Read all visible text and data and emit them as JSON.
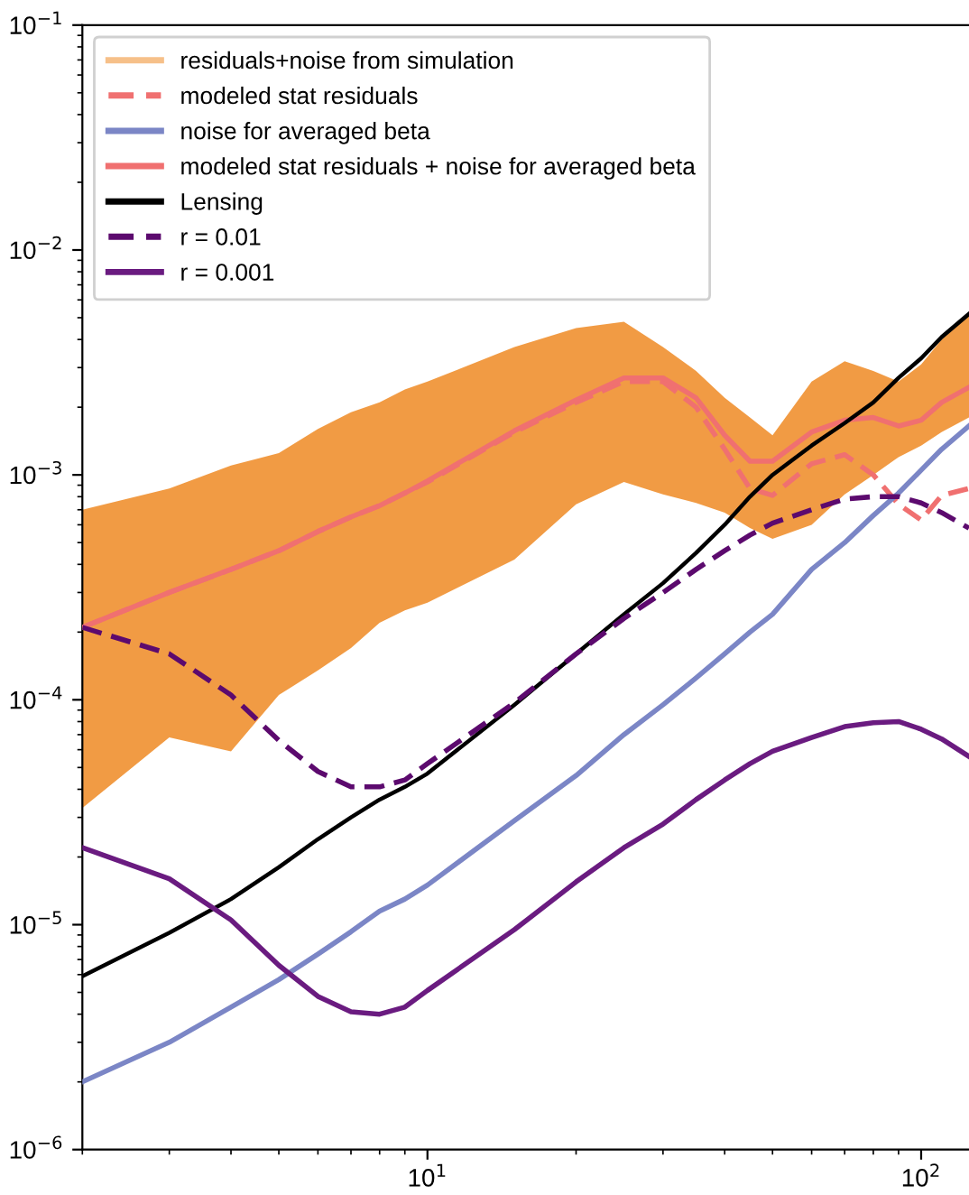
{
  "chart_data": {
    "type": "line",
    "x": [
      2,
      3,
      4,
      5,
      6,
      7,
      8,
      9,
      10,
      15,
      20,
      25,
      30,
      35,
      40,
      45,
      50,
      60,
      70,
      80,
      90,
      100,
      110,
      125
    ],
    "series": [
      {
        "name": "residuals+noise from simulation",
        "color": "#f0963a",
        "values": [
          null,
          null,
          null,
          null,
          null,
          null,
          null,
          null,
          null,
          null,
          null,
          null,
          null,
          null,
          null,
          null,
          null,
          null,
          null,
          null,
          null,
          null,
          null,
          null
        ],
        "lower": [
          3.3e-05,
          6.8e-05,
          5.9e-05,
          0.000105,
          0.000135,
          0.00017,
          0.00022,
          0.00025,
          0.00027,
          0.00042,
          0.00074,
          0.00093,
          0.00082,
          0.00075,
          0.00068,
          0.00058,
          0.00052,
          0.0006,
          0.00082,
          0.001,
          0.0012,
          0.00135,
          0.00155,
          0.0018
        ],
        "upper": [
          0.0007,
          0.00087,
          0.0011,
          0.00125,
          0.0016,
          0.0019,
          0.0021,
          0.0024,
          0.0026,
          0.0037,
          0.0045,
          0.0048,
          0.0037,
          0.0029,
          0.0022,
          0.0018,
          0.0015,
          0.0026,
          0.0032,
          0.0029,
          0.0026,
          0.0031,
          0.004,
          0.0051
        ]
      },
      {
        "name": "modeled stat residuals",
        "color": "#f07070",
        "line_style": "dashed",
        "values": [
          0.00021,
          0.0003,
          0.00038,
          0.00046,
          0.00056,
          0.00065,
          0.00073,
          0.00083,
          0.00093,
          0.00155,
          0.0021,
          0.0026,
          0.0026,
          0.002,
          0.0013,
          0.00087,
          0.00081,
          0.00112,
          0.00123,
          0.001,
          0.00074,
          0.00063,
          0.00081,
          0.00087
        ]
      },
      {
        "name": "noise for averaged beta",
        "color": "#7b86c6",
        "values": [
          2e-06,
          3e-06,
          4.3e-06,
          5.7e-06,
          7.4e-06,
          9.3e-06,
          1.15e-05,
          1.3e-05,
          1.5e-05,
          2.9e-05,
          4.6e-05,
          7e-05,
          9.5e-05,
          0.000125,
          0.00016,
          0.0002,
          0.00024,
          0.00038,
          0.0005,
          0.00066,
          0.00083,
          0.00105,
          0.0013,
          0.00165
        ]
      },
      {
        "name": "modeled stat residuals + noise for averaged beta",
        "color": "#f07070",
        "values": [
          0.00021,
          0.0003,
          0.00038,
          0.00046,
          0.00056,
          0.00065,
          0.00073,
          0.00083,
          0.00094,
          0.00157,
          0.00215,
          0.0027,
          0.0027,
          0.0022,
          0.0015,
          0.00115,
          0.00115,
          0.00155,
          0.00175,
          0.0018,
          0.00165,
          0.00175,
          0.0021,
          0.00245
        ]
      },
      {
        "name": "Lensing",
        "color": "#000000",
        "values": [
          5.9e-06,
          9.2e-06,
          1.3e-05,
          1.8e-05,
          2.4e-05,
          3e-05,
          3.6e-05,
          4.1e-05,
          4.7e-05,
          9.5e-05,
          0.00016,
          0.00024,
          0.00033,
          0.00045,
          0.0006,
          0.0008,
          0.001,
          0.00135,
          0.0017,
          0.0021,
          0.0027,
          0.0033,
          0.0041,
          0.0052
        ]
      },
      {
        "name": "r = 0.01",
        "color": "#5c0a6e",
        "line_style": "dashed",
        "values": [
          0.00021,
          0.00016,
          0.000105,
          6.6e-05,
          4.8e-05,
          4.1e-05,
          4.1e-05,
          4.4e-05,
          5.2e-05,
          9.7e-05,
          0.00016,
          0.00023,
          0.0003,
          0.00038,
          0.00046,
          0.00054,
          0.00061,
          0.0007,
          0.00078,
          0.0008,
          0.0008,
          0.00075,
          0.00068,
          0.00058
        ]
      },
      {
        "name": "r = 0.001",
        "color": "#6a1b80",
        "values": [
          2.2e-05,
          1.6e-05,
          1.05e-05,
          6.6e-06,
          4.8e-06,
          4.1e-06,
          4e-06,
          4.3e-06,
          5.1e-06,
          9.5e-06,
          1.55e-05,
          2.2e-05,
          2.8e-05,
          3.6e-05,
          4.4e-05,
          5.2e-05,
          5.9e-05,
          6.8e-05,
          7.6e-05,
          7.9e-05,
          8e-05,
          7.4e-05,
          6.7e-05,
          5.6e-05
        ]
      }
    ],
    "log": "xy",
    "xlim": [
      2,
      125
    ],
    "ylim": [
      1e-06,
      0.1
    ],
    "xticks": [
      {
        "value": 10,
        "label": "10$^{1}$"
      },
      {
        "value": 100,
        "label": "10$^{2}$"
      }
    ],
    "yticks": [
      {
        "value": 1e-06,
        "label": "10$^{−6}$"
      },
      {
        "value": 1e-05,
        "label": "10$^{−5}$"
      },
      {
        "value": 0.0001,
        "label": "10$^{−4}$"
      },
      {
        "value": 0.001,
        "label": "10$^{−3}$"
      },
      {
        "value": 0.01,
        "label": "10$^{−2}$"
      },
      {
        "value": 0.1,
        "label": "10$^{−1}$"
      }
    ],
    "grid": false,
    "legend": "top left"
  }
}
